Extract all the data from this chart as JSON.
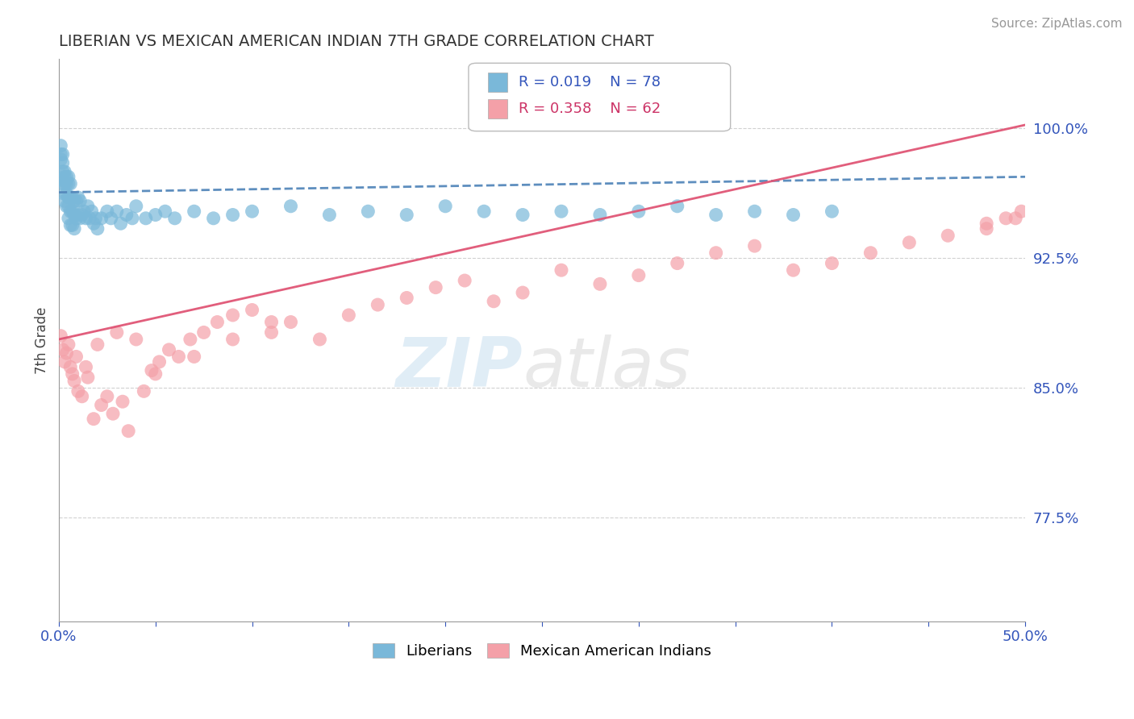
{
  "title": "LIBERIAN VS MEXICAN AMERICAN INDIAN 7TH GRADE CORRELATION CHART",
  "source": "Source: ZipAtlas.com",
  "ylabel": "7th Grade",
  "ytick_labels": [
    "77.5%",
    "85.0%",
    "92.5%",
    "100.0%"
  ],
  "ytick_values": [
    0.775,
    0.85,
    0.925,
    1.0
  ],
  "xmin": 0.0,
  "xmax": 0.5,
  "ymin": 0.715,
  "ymax": 1.04,
  "legend_R1": "R = 0.019",
  "legend_N1": "N = 78",
  "legend_R2": "R = 0.358",
  "legend_N2": "N = 62",
  "color_liberian": "#7ab8d9",
  "color_mexican": "#f4a0a8",
  "color_trend_liberian": "#5588bb",
  "color_trend_mexican": "#e05575",
  "liberian_x": [
    0.001,
    0.001,
    0.001,
    0.002,
    0.002,
    0.002,
    0.002,
    0.002,
    0.003,
    0.003,
    0.003,
    0.003,
    0.003,
    0.004,
    0.004,
    0.004,
    0.004,
    0.005,
    0.005,
    0.005,
    0.005,
    0.005,
    0.006,
    0.006,
    0.006,
    0.006,
    0.007,
    0.007,
    0.007,
    0.008,
    0.008,
    0.008,
    0.009,
    0.009,
    0.01,
    0.01,
    0.011,
    0.011,
    0.012,
    0.013,
    0.014,
    0.015,
    0.016,
    0.017,
    0.018,
    0.019,
    0.02,
    0.022,
    0.025,
    0.027,
    0.03,
    0.032,
    0.035,
    0.038,
    0.04,
    0.045,
    0.05,
    0.055,
    0.06,
    0.07,
    0.08,
    0.09,
    0.1,
    0.12,
    0.14,
    0.16,
    0.18,
    0.2,
    0.22,
    0.24,
    0.26,
    0.28,
    0.3,
    0.32,
    0.34,
    0.36,
    0.38,
    0.4
  ],
  "liberian_y": [
    0.99,
    0.985,
    0.982,
    0.985,
    0.98,
    0.975,
    0.97,
    0.968,
    0.975,
    0.972,
    0.968,
    0.962,
    0.958,
    0.972,
    0.968,
    0.962,
    0.955,
    0.972,
    0.968,
    0.96,
    0.955,
    0.948,
    0.968,
    0.96,
    0.952,
    0.944,
    0.96,
    0.952,
    0.944,
    0.958,
    0.95,
    0.942,
    0.958,
    0.948,
    0.96,
    0.95,
    0.958,
    0.948,
    0.95,
    0.952,
    0.948,
    0.955,
    0.948,
    0.952,
    0.945,
    0.948,
    0.942,
    0.948,
    0.952,
    0.948,
    0.952,
    0.945,
    0.95,
    0.948,
    0.955,
    0.948,
    0.95,
    0.952,
    0.948,
    0.952,
    0.948,
    0.95,
    0.952,
    0.955,
    0.95,
    0.952,
    0.95,
    0.955,
    0.952,
    0.95,
    0.952,
    0.95,
    0.952,
    0.955,
    0.95,
    0.952,
    0.95,
    0.952
  ],
  "mexican_x": [
    0.001,
    0.002,
    0.003,
    0.004,
    0.005,
    0.006,
    0.007,
    0.008,
    0.009,
    0.01,
    0.012,
    0.014,
    0.015,
    0.018,
    0.02,
    0.022,
    0.025,
    0.028,
    0.03,
    0.033,
    0.036,
    0.04,
    0.044,
    0.048,
    0.052,
    0.057,
    0.062,
    0.068,
    0.075,
    0.082,
    0.09,
    0.1,
    0.11,
    0.12,
    0.135,
    0.15,
    0.165,
    0.18,
    0.195,
    0.21,
    0.225,
    0.24,
    0.26,
    0.28,
    0.3,
    0.32,
    0.34,
    0.36,
    0.38,
    0.4,
    0.42,
    0.44,
    0.46,
    0.48,
    0.49,
    0.498,
    0.05,
    0.07,
    0.09,
    0.11,
    0.48,
    0.495
  ],
  "mexican_y": [
    0.88,
    0.872,
    0.865,
    0.87,
    0.875,
    0.862,
    0.858,
    0.854,
    0.868,
    0.848,
    0.845,
    0.862,
    0.856,
    0.832,
    0.875,
    0.84,
    0.845,
    0.835,
    0.882,
    0.842,
    0.825,
    0.878,
    0.848,
    0.86,
    0.865,
    0.872,
    0.868,
    0.878,
    0.882,
    0.888,
    0.892,
    0.895,
    0.882,
    0.888,
    0.878,
    0.892,
    0.898,
    0.902,
    0.908,
    0.912,
    0.9,
    0.905,
    0.918,
    0.91,
    0.915,
    0.922,
    0.928,
    0.932,
    0.918,
    0.922,
    0.928,
    0.934,
    0.938,
    0.945,
    0.948,
    0.952,
    0.858,
    0.868,
    0.878,
    0.888,
    0.942,
    0.948
  ],
  "watermark_ZIP": "ZIP",
  "watermark_atlas": "atlas",
  "background_color": "#ffffff",
  "grid_color": "#cccccc"
}
